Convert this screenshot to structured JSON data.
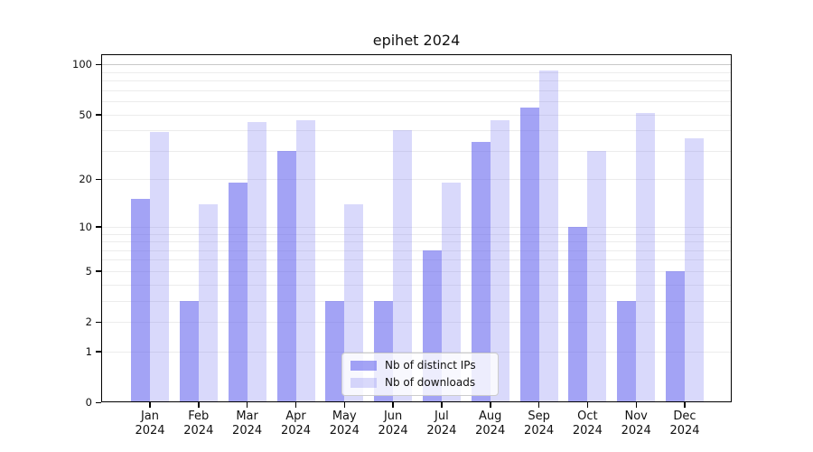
{
  "chart_data": {
    "type": "bar",
    "title": "epihet 2024",
    "categories": [
      "Jan 2024",
      "Feb 2024",
      "Mar 2024",
      "Apr 2024",
      "May 2024",
      "Jun 2024",
      "Jul 2024",
      "Aug 2024",
      "Sep 2024",
      "Oct 2024",
      "Nov 2024",
      "Dec 2024"
    ],
    "series": [
      {
        "name": "Nb of distinct IPs",
        "color": "rgba(102,102,238,0.6)",
        "values": [
          15,
          3,
          19,
          30,
          3,
          3,
          7,
          34,
          55,
          10,
          3,
          5
        ]
      },
      {
        "name": "Nb of downloads",
        "color": "rgba(102,102,238,0.25)",
        "values": [
          39,
          14,
          45,
          46,
          14,
          40,
          19,
          46,
          92,
          30,
          51,
          36
        ]
      }
    ],
    "xlabel": "",
    "ylabel": "",
    "yscale": "log1p",
    "yticks": [
      0,
      1,
      2,
      5,
      10,
      20,
      50,
      100
    ],
    "gridline_values": [
      1,
      2,
      3,
      4,
      5,
      6,
      7,
      8,
      9,
      10,
      20,
      30,
      40,
      50,
      60,
      70,
      80,
      90,
      100
    ],
    "ylim": [
      0,
      112
    ],
    "grid": "horizontal",
    "legend_position": "lower center inside",
    "bar_base_color": "#6666ee"
  }
}
